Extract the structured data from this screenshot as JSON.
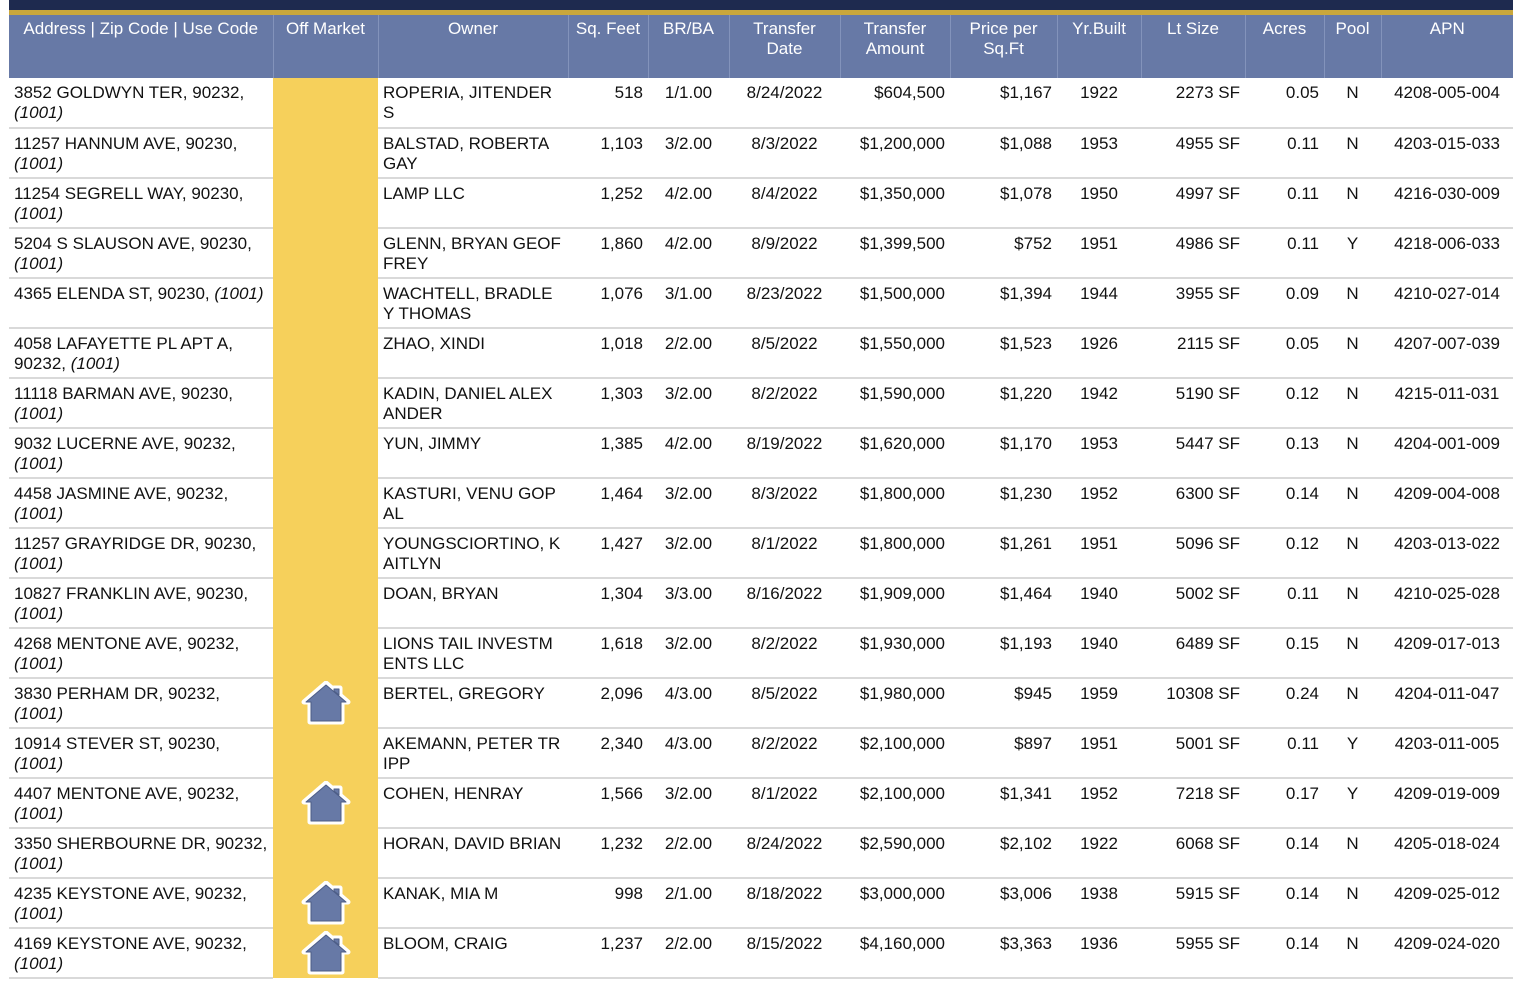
{
  "headers": {
    "address": "Address | Zip Code | Use Code",
    "off_market": "Off Market",
    "owner": "Owner",
    "sqft": "Sq. Feet",
    "brba": "BR/BA",
    "transfer_date_1": "Transfer",
    "transfer_date_2": "Date",
    "transfer_amount_1": "Transfer",
    "transfer_amount_2": "Amount",
    "price_per_1": "Price per",
    "price_per_2": "Sq.Ft",
    "yr_built": "Yr.Built",
    "lt_size": "Lt Size",
    "acres": "Acres",
    "pool": "Pool",
    "apn": "APN"
  },
  "colors": {
    "header_bg": "#6779a6",
    "off_market_bg": "#f6d05b",
    "icon_fill": "#6779a6",
    "top_navy": "#1e2a4f",
    "top_gold": "#c9a73b"
  },
  "rows": [
    {
      "address": "3852 GOLDWYN TER, 90232,",
      "use_code": "(1001)",
      "off_market": false,
      "owner": "ROPERIA, JITENDER S",
      "sqft": "518",
      "brba": "1/1.00",
      "date": "8/24/2022",
      "amount": "$604,500",
      "ppsf": "$1,167",
      "yr": "1922",
      "lot": "2273 SF",
      "acres": "0.05",
      "pool": "N",
      "apn": "4208-005-004"
    },
    {
      "address": "11257 HANNUM AVE, 90230,",
      "use_code": "(1001)",
      "off_market": false,
      "owner": "BALSTAD, ROBERTA GAY",
      "sqft": "1,103",
      "brba": "3/2.00",
      "date": "8/3/2022",
      "amount": "$1,200,000",
      "ppsf": "$1,088",
      "yr": "1953",
      "lot": "4955 SF",
      "acres": "0.11",
      "pool": "N",
      "apn": "4203-015-033"
    },
    {
      "address": "11254 SEGRELL WAY, 90230,",
      "use_code": "(1001)",
      "off_market": false,
      "owner": "LAMP LLC",
      "sqft": "1,252",
      "brba": "4/2.00",
      "date": "8/4/2022",
      "amount": "$1,350,000",
      "ppsf": "$1,078",
      "yr": "1950",
      "lot": "4997 SF",
      "acres": "0.11",
      "pool": "N",
      "apn": "4216-030-009"
    },
    {
      "address": "5204 S SLAUSON AVE, 90230,",
      "use_code": "(1001)",
      "off_market": false,
      "owner": "GLENN, BRYAN GEOFFREY",
      "sqft": "1,860",
      "brba": "4/2.00",
      "date": "8/9/2022",
      "amount": "$1,399,500",
      "ppsf": "$752",
      "yr": "1951",
      "lot": "4986 SF",
      "acres": "0.11",
      "pool": "Y",
      "apn": "4218-006-033"
    },
    {
      "address": "4365 ELENDA ST, 90230,",
      "use_code": "(1001)",
      "off_market": false,
      "owner": "WACHTELL, BRADLEY THOMAS",
      "sqft": "1,076",
      "brba": "3/1.00",
      "date": "8/23/2022",
      "amount": "$1,500,000",
      "ppsf": "$1,394",
      "yr": "1944",
      "lot": "3955 SF",
      "acres": "0.09",
      "pool": "N",
      "apn": "4210-027-014"
    },
    {
      "address": "4058 LAFAYETTE PL APT A, 90232,",
      "use_code": "(1001)",
      "off_market": false,
      "owner": "ZHAO, XINDI",
      "sqft": "1,018",
      "brba": "2/2.00",
      "date": "8/5/2022",
      "amount": "$1,550,000",
      "ppsf": "$1,523",
      "yr": "1926",
      "lot": "2115 SF",
      "acres": "0.05",
      "pool": "N",
      "apn": "4207-007-039"
    },
    {
      "address": "11118 BARMAN AVE, 90230,",
      "use_code": "(1001)",
      "off_market": false,
      "owner": "KADIN, DANIEL ALEXANDER",
      "sqft": "1,303",
      "brba": "3/2.00",
      "date": "8/2/2022",
      "amount": "$1,590,000",
      "ppsf": "$1,220",
      "yr": "1942",
      "lot": "5190 SF",
      "acres": "0.12",
      "pool": "N",
      "apn": "4215-011-031"
    },
    {
      "address": "9032 LUCERNE AVE, 90232,",
      "use_code": "(1001)",
      "off_market": false,
      "owner": "YUN, JIMMY",
      "sqft": "1,385",
      "brba": "4/2.00",
      "date": "8/19/2022",
      "amount": "$1,620,000",
      "ppsf": "$1,170",
      "yr": "1953",
      "lot": "5447 SF",
      "acres": "0.13",
      "pool": "N",
      "apn": "4204-001-009"
    },
    {
      "address": "4458 JASMINE AVE, 90232,",
      "use_code": "(1001)",
      "off_market": false,
      "owner": "KASTURI, VENU GOPAL",
      "sqft": "1,464",
      "brba": "3/2.00",
      "date": "8/3/2022",
      "amount": "$1,800,000",
      "ppsf": "$1,230",
      "yr": "1952",
      "lot": "6300 SF",
      "acres": "0.14",
      "pool": "N",
      "apn": "4209-004-008"
    },
    {
      "address": "11257 GRAYRIDGE DR, 90230,",
      "use_code": "(1001)",
      "off_market": false,
      "owner": "YOUNGSCIORTINO, KAITLYN",
      "sqft": "1,427",
      "brba": "3/2.00",
      "date": "8/1/2022",
      "amount": "$1,800,000",
      "ppsf": "$1,261",
      "yr": "1951",
      "lot": "5096 SF",
      "acres": "0.12",
      "pool": "N",
      "apn": "4203-013-022"
    },
    {
      "address": "10827 FRANKLIN AVE, 90230,",
      "use_code": "(1001)",
      "off_market": false,
      "owner": "DOAN, BRYAN",
      "sqft": "1,304",
      "brba": "3/3.00",
      "date": "8/16/2022",
      "amount": "$1,909,000",
      "ppsf": "$1,464",
      "yr": "1940",
      "lot": "5002 SF",
      "acres": "0.11",
      "pool": "N",
      "apn": "4210-025-028"
    },
    {
      "address": "4268 MENTONE AVE, 90232,",
      "use_code": "(1001)",
      "off_market": false,
      "owner": "LIONS TAIL INVESTMENTS LLC",
      "sqft": "1,618",
      "brba": "3/2.00",
      "date": "8/2/2022",
      "amount": "$1,930,000",
      "ppsf": "$1,193",
      "yr": "1940",
      "lot": "6489 SF",
      "acres": "0.15",
      "pool": "N",
      "apn": "4209-017-013"
    },
    {
      "address": "3830 PERHAM DR, 90232,",
      "use_code": "(1001)",
      "off_market": true,
      "owner": "BERTEL, GREGORY",
      "sqft": "2,096",
      "brba": "4/3.00",
      "date": "8/5/2022",
      "amount": "$1,980,000",
      "ppsf": "$945",
      "yr": "1959",
      "lot": "10308 SF",
      "acres": "0.24",
      "pool": "N",
      "apn": "4204-011-047"
    },
    {
      "address": "10914 STEVER ST, 90230,",
      "use_code": "(1001)",
      "off_market": false,
      "owner": "AKEMANN, PETER TRIPP",
      "sqft": "2,340",
      "brba": "4/3.00",
      "date": "8/2/2022",
      "amount": "$2,100,000",
      "ppsf": "$897",
      "yr": "1951",
      "lot": "5001 SF",
      "acres": "0.11",
      "pool": "Y",
      "apn": "4203-011-005"
    },
    {
      "address": "4407 MENTONE AVE, 90232,",
      "use_code": "(1001)",
      "off_market": true,
      "owner": "COHEN, HENRAY",
      "sqft": "1,566",
      "brba": "3/2.00",
      "date": "8/1/2022",
      "amount": "$2,100,000",
      "ppsf": "$1,341",
      "yr": "1952",
      "lot": "7218 SF",
      "acres": "0.17",
      "pool": "Y",
      "apn": "4209-019-009"
    },
    {
      "address": "3350 SHERBOURNE DR, 90232,",
      "use_code": "(1001)",
      "off_market": false,
      "owner": "HORAN, DAVID BRIAN",
      "sqft": "1,232",
      "brba": "2/2.00",
      "date": "8/24/2022",
      "amount": "$2,590,000",
      "ppsf": "$2,102",
      "yr": "1922",
      "lot": "6068 SF",
      "acres": "0.14",
      "pool": "N",
      "apn": "4205-018-024"
    },
    {
      "address": "4235 KEYSTONE AVE, 90232,",
      "use_code": "(1001)",
      "off_market": true,
      "owner": "KANAK, MIA M",
      "sqft": "998",
      "brba": "2/1.00",
      "date": "8/18/2022",
      "amount": "$3,000,000",
      "ppsf": "$3,006",
      "yr": "1938",
      "lot": "5915 SF",
      "acres": "0.14",
      "pool": "N",
      "apn": "4209-025-012"
    },
    {
      "address": "4169 KEYSTONE AVE, 90232,",
      "use_code": "(1001)",
      "off_market": true,
      "owner": "BLOOM, CRAIG",
      "sqft": "1,237",
      "brba": "2/2.00",
      "date": "8/15/2022",
      "amount": "$4,160,000",
      "ppsf": "$3,363",
      "yr": "1936",
      "lot": "5955 SF",
      "acres": "0.14",
      "pool": "N",
      "apn": "4209-024-020"
    }
  ]
}
